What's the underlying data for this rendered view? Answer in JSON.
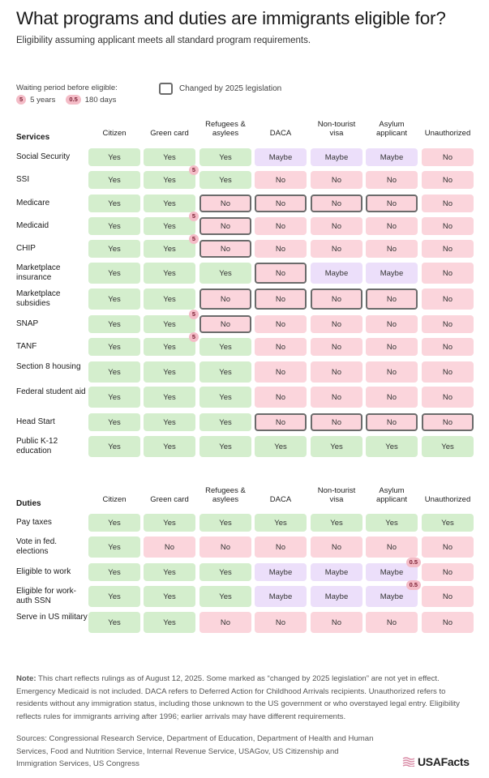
{
  "title": "What programs and duties are immigrants eligible for?",
  "subtitle": "Eligibility assuming applicant meets all standard program requirements.",
  "legend": {
    "waiting_label": "Waiting period before eligible:",
    "items": [
      {
        "badge": "5",
        "label": "5 years"
      },
      {
        "badge": "0.5",
        "label": "180 days"
      }
    ],
    "changed_label": "Changed by 2025 legislation"
  },
  "columns": [
    "Citizen",
    "Green card",
    "Refugees &\nasylees",
    "DACA",
    "Non-tourist\nvisa",
    "Asylum\napplicant",
    "Unauthorized"
  ],
  "colors": {
    "yes": "#d4eecd",
    "no": "#fbd5dc",
    "maybe": "#ecdffa",
    "outline": "#6b6b6b"
  },
  "chart_data": {
    "type": "table",
    "sections": [
      {
        "title": "Services",
        "rows": [
          {
            "label": "Social Security",
            "values": [
              "Yes",
              "Yes",
              "Yes",
              "Maybe",
              "Maybe",
              "Maybe",
              "No"
            ],
            "changed": [],
            "badges": {}
          },
          {
            "label": "SSI",
            "values": [
              "Yes",
              "Yes",
              "Yes",
              "No",
              "No",
              "No",
              "No"
            ],
            "changed": [],
            "badges": {
              "1": "5"
            }
          },
          {
            "label": "Medicare",
            "values": [
              "Yes",
              "Yes",
              "No",
              "No",
              "No",
              "No",
              "No"
            ],
            "changed": [
              2,
              3,
              4,
              5
            ],
            "badges": {}
          },
          {
            "label": "Medicaid",
            "values": [
              "Yes",
              "Yes",
              "No",
              "No",
              "No",
              "No",
              "No"
            ],
            "changed": [
              2
            ],
            "badges": {
              "1": "5"
            }
          },
          {
            "label": "CHIP",
            "values": [
              "Yes",
              "Yes",
              "No",
              "No",
              "No",
              "No",
              "No"
            ],
            "changed": [
              2
            ],
            "badges": {
              "1": "5"
            }
          },
          {
            "label": "Marketplace insurance",
            "values": [
              "Yes",
              "Yes",
              "Yes",
              "No",
              "Maybe",
              "Maybe",
              "No"
            ],
            "changed": [
              3
            ],
            "badges": {}
          },
          {
            "label": "Marketplace subsidies",
            "values": [
              "Yes",
              "Yes",
              "No",
              "No",
              "No",
              "No",
              "No"
            ],
            "changed": [
              2,
              3,
              4,
              5
            ],
            "badges": {}
          },
          {
            "label": "SNAP",
            "values": [
              "Yes",
              "Yes",
              "No",
              "No",
              "No",
              "No",
              "No"
            ],
            "changed": [
              2
            ],
            "badges": {
              "1": "5"
            }
          },
          {
            "label": "TANF",
            "values": [
              "Yes",
              "Yes",
              "Yes",
              "No",
              "No",
              "No",
              "No"
            ],
            "changed": [],
            "badges": {
              "1": "5"
            }
          },
          {
            "label": "Section 8 housing",
            "values": [
              "Yes",
              "Yes",
              "Yes",
              "No",
              "No",
              "No",
              "No"
            ],
            "changed": [],
            "badges": {}
          },
          {
            "label": "Federal student aid",
            "values": [
              "Yes",
              "Yes",
              "Yes",
              "No",
              "No",
              "No",
              "No"
            ],
            "changed": [],
            "badges": {}
          },
          {
            "label": "Head Start",
            "values": [
              "Yes",
              "Yes",
              "Yes",
              "No",
              "No",
              "No",
              "No"
            ],
            "changed": [
              3,
              4,
              5,
              6
            ],
            "badges": {}
          },
          {
            "label": "Public K-12 education",
            "values": [
              "Yes",
              "Yes",
              "Yes",
              "Yes",
              "Yes",
              "Yes",
              "Yes"
            ],
            "changed": [],
            "badges": {}
          }
        ]
      },
      {
        "title": "Duties",
        "rows": [
          {
            "label": "Pay taxes",
            "values": [
              "Yes",
              "Yes",
              "Yes",
              "Yes",
              "Yes",
              "Yes",
              "Yes"
            ],
            "changed": [],
            "badges": {}
          },
          {
            "label": "Vote in fed. elections",
            "values": [
              "Yes",
              "No",
              "No",
              "No",
              "No",
              "No",
              "No"
            ],
            "changed": [],
            "badges": {}
          },
          {
            "label": "Eligible to work",
            "values": [
              "Yes",
              "Yes",
              "Yes",
              "Maybe",
              "Maybe",
              "Maybe",
              "No"
            ],
            "changed": [],
            "badges": {
              "5": "0.5"
            }
          },
          {
            "label": "Eligible for work-auth SSN",
            "values": [
              "Yes",
              "Yes",
              "Yes",
              "Maybe",
              "Maybe",
              "Maybe",
              "No"
            ],
            "changed": [],
            "badges": {
              "5": "0.5"
            }
          },
          {
            "label": "Serve in US military",
            "values": [
              "Yes",
              "Yes",
              "No",
              "No",
              "No",
              "No",
              "No"
            ],
            "changed": [],
            "badges": {}
          }
        ]
      }
    ]
  },
  "note": {
    "label": "Note:",
    "text": " This chart reflects rulings as of August 12, 2025. Some marked as “changed by 2025 legislation” are not yet in effect. Emergency Medicaid is not included. DACA refers to Deferred Action for Childhood Arrivals recipients. Unauthorized refers to residents without any immigration status, including those unknown to the US government or who overstayed legal entry. Eligibility reflects rules for immigrants arriving after 1996; earlier arrivals may have different requirements."
  },
  "sources": "Sources: Congressional Research Service, Department of Education, Department of Health and Human Services, Food and Nutrition Service, Internal Revenue Service, USAGov, US Citizenship and Immigration Services, US Congress",
  "logo": "USAFacts"
}
